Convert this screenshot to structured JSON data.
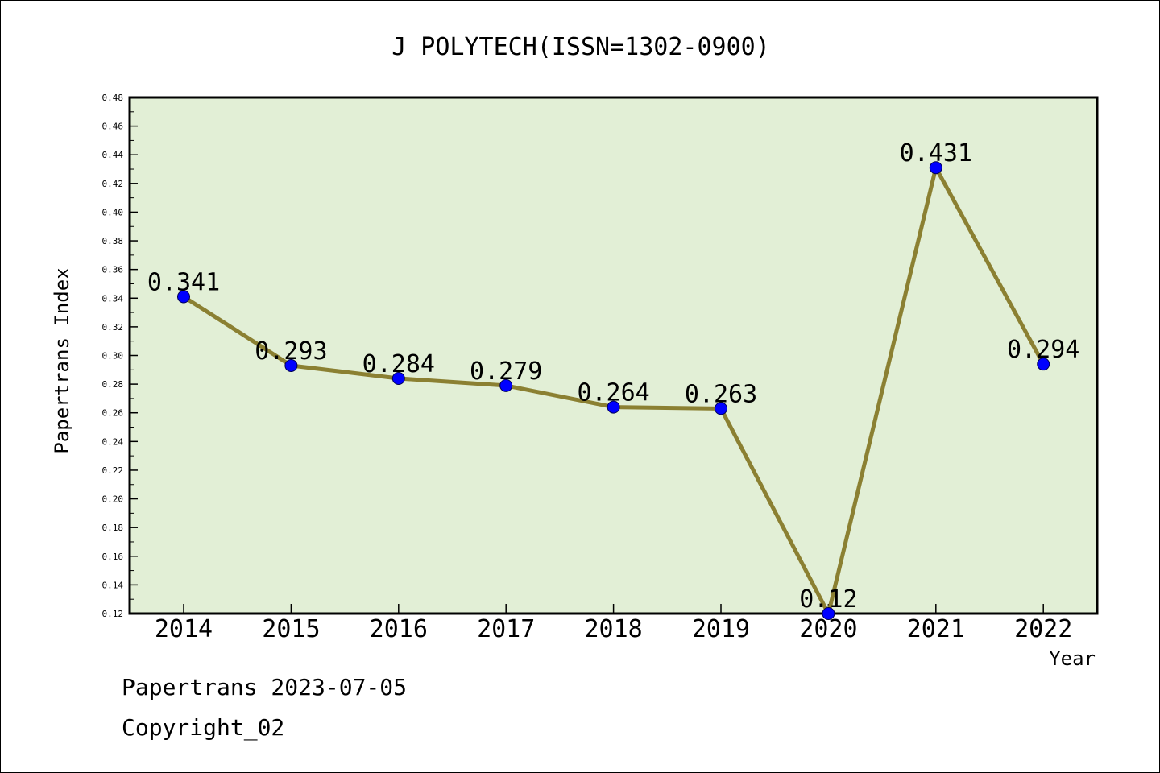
{
  "chart_data": {
    "type": "line",
    "title": "J POLYTECH(ISSN=1302-0900)",
    "xlabel": "Year",
    "ylabel": "Papertrans Index",
    "categories": [
      "2014",
      "2015",
      "2016",
      "2017",
      "2018",
      "2019",
      "2020",
      "2021",
      "2022"
    ],
    "series": [
      {
        "values": [
          0.341,
          0.293,
          0.284,
          0.279,
          0.264,
          0.263,
          0.12,
          0.431,
          0.294
        ],
        "labels": [
          "0.341",
          "0.293",
          "0.284",
          "0.279",
          "0.264",
          "0.263",
          "0.12",
          "0.431",
          "0.294"
        ]
      }
    ],
    "ylim": [
      0.12,
      0.48
    ],
    "yticks": [
      "0.12",
      "0.14",
      "0.16",
      "0.18",
      "0.20",
      "0.22",
      "0.24",
      "0.26",
      "0.28",
      "0.30",
      "0.32",
      "0.34",
      "0.36",
      "0.38",
      "0.40",
      "0.42",
      "0.44",
      "0.46",
      "0.48"
    ],
    "grid": false,
    "colors": {
      "plot_background": "#e2efd6",
      "line": "#8b8032",
      "marker": "#0000ff"
    }
  },
  "footer": {
    "date_line": "Papertrans 2023-07-05",
    "copyright_line": "Copyright_02"
  }
}
